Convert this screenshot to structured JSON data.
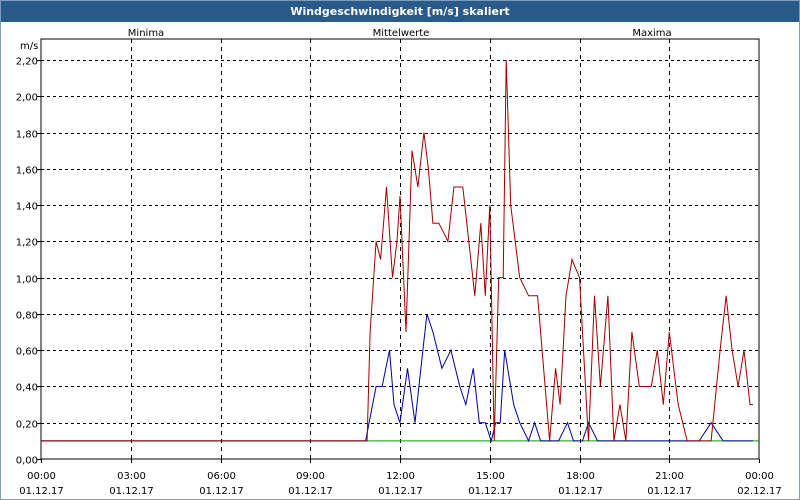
{
  "window": {
    "title": "Windgeschwindigkeit [m/s] skaliert"
  },
  "colors": {
    "minima": "#00a000",
    "mittelwerte": "#0000a0",
    "maxima": "#a00000",
    "grid": "#000000",
    "text": "#000000"
  },
  "chart_data": {
    "type": "line",
    "title": "Windgeschwindigkeit [m/s] skaliert",
    "ylabel": "m/s",
    "xlabel": "",
    "ylim": [
      0,
      2.2
    ],
    "xlim_hours": [
      0,
      24
    ],
    "grid": true,
    "legend_placement": "top",
    "y_ticks": [
      "0,00",
      "0,20",
      "0,40",
      "0,60",
      "0,80",
      "1,00",
      "1,20",
      "1,40",
      "1,60",
      "1,80",
      "2,00",
      "2,20"
    ],
    "x_ticks": [
      {
        "time": "00:00",
        "date": "01.12.17"
      },
      {
        "time": "03:00",
        "date": "01.12.17"
      },
      {
        "time": "06:00",
        "date": "01.12.17"
      },
      {
        "time": "09:00",
        "date": "01.12.17"
      },
      {
        "time": "12:00",
        "date": "01.12.17"
      },
      {
        "time": "15:00",
        "date": "01.12.17"
      },
      {
        "time": "18:00",
        "date": "01.12.17"
      },
      {
        "time": "21:00",
        "date": "01.12.17"
      },
      {
        "time": "00:00",
        "date": "02.12.17"
      }
    ],
    "series": [
      {
        "name": "Minima",
        "color": "#00a000",
        "x": [
          0,
          10.9,
          16.3,
          16.35,
          24
        ],
        "y": [
          0.1,
          0.1,
          0.1,
          0.1,
          0.1
        ]
      },
      {
        "name": "Mittelwerte",
        "color": "#0000a0",
        "x": [
          0,
          10.85,
          11.2,
          11.4,
          11.65,
          11.8,
          12.0,
          12.25,
          12.5,
          12.7,
          12.9,
          13.1,
          13.4,
          13.7,
          14.0,
          14.2,
          14.45,
          14.65,
          14.85,
          15.05,
          15.2,
          15.35,
          15.5,
          15.8,
          16.0,
          16.3,
          16.5,
          16.7,
          17.0,
          17.3,
          17.6,
          17.8,
          18.0,
          18.1,
          18.3,
          18.6,
          18.9,
          19.2,
          19.5,
          19.8,
          20.1,
          20.4,
          20.7,
          21.0,
          21.3,
          21.6,
          22.0,
          22.4,
          22.8,
          23.2,
          23.6,
          23.8
        ],
        "y": [
          0.1,
          0.1,
          0.4,
          0.4,
          0.6,
          0.3,
          0.2,
          0.5,
          0.2,
          0.5,
          0.8,
          0.7,
          0.5,
          0.6,
          0.4,
          0.3,
          0.5,
          0.2,
          0.2,
          0.1,
          0.2,
          0.2,
          0.6,
          0.3,
          0.2,
          0.1,
          0.2,
          0.1,
          0.1,
          0.1,
          0.2,
          0.1,
          0.1,
          0.1,
          0.2,
          0.1,
          0.1,
          0.1,
          0.1,
          0.1,
          0.1,
          0.1,
          0.1,
          0.1,
          0.1,
          0.1,
          0.1,
          0.2,
          0.1,
          0.1,
          0.1,
          0.1
        ]
      },
      {
        "name": "Maxima",
        "color": "#a00000",
        "x": [
          0,
          10.9,
          11.0,
          11.2,
          11.35,
          11.55,
          11.75,
          11.9,
          12.0,
          12.2,
          12.4,
          12.6,
          12.8,
          12.95,
          13.1,
          13.3,
          13.6,
          13.8,
          14.1,
          14.3,
          14.5,
          14.7,
          14.85,
          15.0,
          15.15,
          15.3,
          15.45,
          15.55,
          15.7,
          16.0,
          16.3,
          16.6,
          16.8,
          17.0,
          17.2,
          17.35,
          17.55,
          17.75,
          18.0,
          18.3,
          18.5,
          18.7,
          18.95,
          19.15,
          19.35,
          19.55,
          19.75,
          20.0,
          20.2,
          20.4,
          20.6,
          20.8,
          21.0,
          21.3,
          21.6,
          21.9,
          22.1,
          22.4,
          22.7,
          22.9,
          23.1,
          23.3,
          23.5,
          23.7,
          23.8
        ],
        "y": [
          0.1,
          0.1,
          0.7,
          1.2,
          1.1,
          1.5,
          1.0,
          1.2,
          1.45,
          0.7,
          1.7,
          1.5,
          1.8,
          1.6,
          1.3,
          1.3,
          1.2,
          1.5,
          1.5,
          1.2,
          0.9,
          1.3,
          0.9,
          1.4,
          0.1,
          1.0,
          1.0,
          2.2,
          1.4,
          1.0,
          0.9,
          0.9,
          0.5,
          0.1,
          0.5,
          0.3,
          0.9,
          1.1,
          1.0,
          0.1,
          0.9,
          0.4,
          0.9,
          0.1,
          0.3,
          0.1,
          0.7,
          0.4,
          0.4,
          0.4,
          0.6,
          0.3,
          0.7,
          0.3,
          0.1,
          0.1,
          0.1,
          0.1,
          0.6,
          0.9,
          0.6,
          0.4,
          0.6,
          0.3,
          0.3
        ]
      }
    ]
  }
}
